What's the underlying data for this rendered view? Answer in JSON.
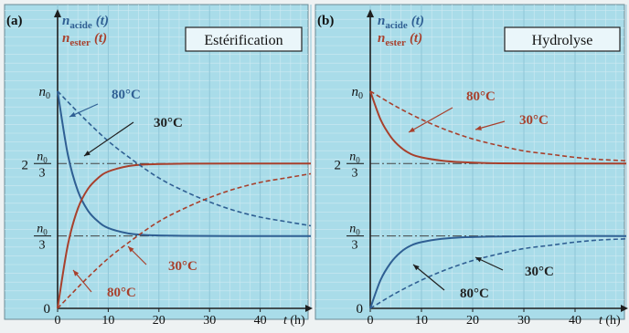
{
  "colors": {
    "plot_bg": "#a9dce9",
    "grid_minor": "#cfeaf2",
    "grid_major": "#8fc6d8",
    "blue": "#2f5f93",
    "red": "#a8402c",
    "axis": "#1f1f1f",
    "page_bg": "#eef2f3"
  },
  "chart_data": [
    {
      "panel_label": "(a)",
      "title": "Estérification",
      "type": "line",
      "xlabel": "t (h)",
      "xlim": [
        0,
        50
      ],
      "ylim": [
        0,
        1.05
      ],
      "x_ticks": [
        "0",
        "10",
        "20",
        "30",
        "40"
      ],
      "legend": [
        {
          "symbol": "n",
          "sub": "acide",
          "arg": "(t)",
          "color": "#2f5f93"
        },
        {
          "symbol": "n",
          "sub": "ester",
          "arg": "(t)",
          "color": "#a8402c"
        }
      ],
      "y_ticks": [
        {
          "label": "n0",
          "value": 1
        },
        {
          "label": "2 n0/3",
          "value": 0.6667
        },
        {
          "label": "n0/3",
          "value": 0.3333
        },
        {
          "label": "0",
          "value": 0
        }
      ],
      "series": [
        {
          "quantity": "acide",
          "temperature": "80°C",
          "style": "solid",
          "color": "#2f5f93",
          "x": [
            0,
            2,
            4,
            6,
            8,
            10,
            14,
            18,
            25,
            35,
            50
          ],
          "y": [
            1.0,
            0.71,
            0.54,
            0.45,
            0.4,
            0.37,
            0.345,
            0.337,
            0.334,
            0.333,
            0.333
          ]
        },
        {
          "quantity": "ester",
          "temperature": "80°C",
          "style": "solid",
          "color": "#a8402c",
          "x": [
            0,
            2,
            4,
            6,
            8,
            10,
            14,
            18,
            25,
            35,
            50
          ],
          "y": [
            0.0,
            0.29,
            0.46,
            0.55,
            0.6,
            0.63,
            0.655,
            0.663,
            0.666,
            0.667,
            0.667
          ]
        },
        {
          "quantity": "acide",
          "temperature": "30°C",
          "style": "dashed",
          "color": "#2f5f93",
          "x": [
            0,
            5,
            10,
            15,
            20,
            25,
            30,
            35,
            40,
            45,
            50
          ],
          "y": [
            1.0,
            0.88,
            0.77,
            0.68,
            0.6,
            0.54,
            0.49,
            0.45,
            0.42,
            0.4,
            0.38
          ]
        },
        {
          "quantity": "ester",
          "temperature": "30°C",
          "style": "dashed",
          "color": "#a8402c",
          "x": [
            0,
            5,
            10,
            15,
            20,
            25,
            30,
            35,
            40,
            45,
            50
          ],
          "y": [
            0.0,
            0.12,
            0.23,
            0.32,
            0.4,
            0.46,
            0.51,
            0.55,
            0.58,
            0.6,
            0.62
          ]
        }
      ],
      "annotations": [
        {
          "text": "80°C",
          "color": "#2f5f93"
        },
        {
          "text": "30°C",
          "color": "#1f1f1f"
        },
        {
          "text": "30°C",
          "color": "#a8402c"
        },
        {
          "text": "80°C",
          "color": "#a8402c"
        }
      ]
    },
    {
      "panel_label": "(b)",
      "title": "Hydrolyse",
      "type": "line",
      "xlabel": "t (h)",
      "xlim": [
        0,
        50
      ],
      "ylim": [
        0,
        1.05
      ],
      "x_ticks": [
        "0",
        "10",
        "20",
        "30",
        "40"
      ],
      "legend": [
        {
          "symbol": "n",
          "sub": "acide",
          "arg": "(t)",
          "color": "#2f5f93"
        },
        {
          "symbol": "n",
          "sub": "ester",
          "arg": "(t)",
          "color": "#a8402c"
        }
      ],
      "y_ticks": [
        {
          "label": "n0",
          "value": 1
        },
        {
          "label": "2 n0/3",
          "value": 0.6667
        },
        {
          "label": "n0/3",
          "value": 0.3333
        },
        {
          "label": "0",
          "value": 0
        }
      ],
      "series": [
        {
          "quantity": "ester",
          "temperature": "80°C",
          "style": "solid",
          "color": "#a8402c",
          "x": [
            0,
            2,
            4,
            6,
            8,
            10,
            14,
            18,
            25,
            35,
            50
          ],
          "y": [
            1.0,
            0.87,
            0.79,
            0.74,
            0.71,
            0.695,
            0.68,
            0.673,
            0.668,
            0.667,
            0.667
          ]
        },
        {
          "quantity": "ester",
          "temperature": "30°C",
          "style": "dashed",
          "color": "#a8402c",
          "x": [
            0,
            5,
            10,
            15,
            20,
            25,
            30,
            35,
            40,
            45,
            50
          ],
          "y": [
            1.0,
            0.93,
            0.87,
            0.82,
            0.78,
            0.75,
            0.725,
            0.71,
            0.695,
            0.685,
            0.68
          ]
        },
        {
          "quantity": "acide",
          "temperature": "80°C",
          "style": "solid",
          "color": "#2f5f93",
          "x": [
            0,
            2,
            4,
            6,
            8,
            10,
            14,
            18,
            25,
            35,
            50
          ],
          "y": [
            0.0,
            0.13,
            0.21,
            0.26,
            0.29,
            0.305,
            0.32,
            0.327,
            0.331,
            0.333,
            0.333
          ]
        },
        {
          "quantity": "acide",
          "temperature": "30°C",
          "style": "dashed",
          "color": "#2f5f93",
          "x": [
            0,
            5,
            10,
            15,
            20,
            25,
            30,
            35,
            40,
            45,
            50
          ],
          "y": [
            0.0,
            0.07,
            0.13,
            0.18,
            0.22,
            0.25,
            0.275,
            0.29,
            0.305,
            0.315,
            0.32
          ]
        }
      ],
      "annotations": [
        {
          "text": "80°C",
          "color": "#a8402c"
        },
        {
          "text": "30°C",
          "color": "#a8402c"
        },
        {
          "text": "30°C",
          "color": "#1f1f1f"
        },
        {
          "text": "80°C",
          "color": "#1f1f1f"
        }
      ]
    }
  ]
}
